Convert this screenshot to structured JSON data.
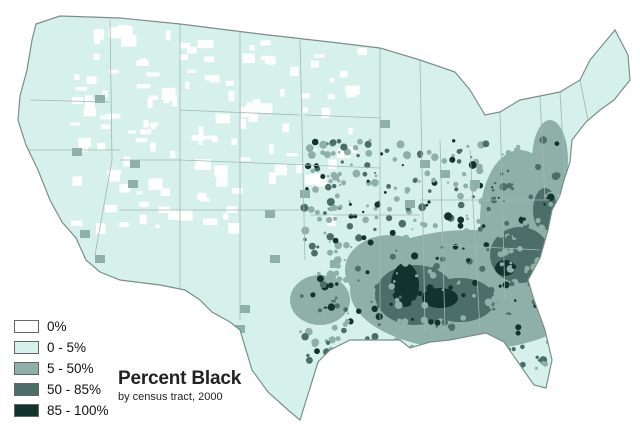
{
  "map": {
    "title": "Percent Black",
    "subtitle": "by census tract, 2000",
    "legend": [
      {
        "label": "0%",
        "color": "#ffffff"
      },
      {
        "label": "0 - 5%",
        "color": "#d6f1ec"
      },
      {
        "label": "5 - 50%",
        "color": "#8fb0a8"
      },
      {
        "label": "50 - 85%",
        "color": "#4b6e68"
      },
      {
        "label": "85 - 100%",
        "color": "#12322d"
      }
    ],
    "colors": {
      "outline": "#7a8f8b",
      "state_border": "#9fb7b2",
      "land_base": "#d6f1ec"
    }
  }
}
